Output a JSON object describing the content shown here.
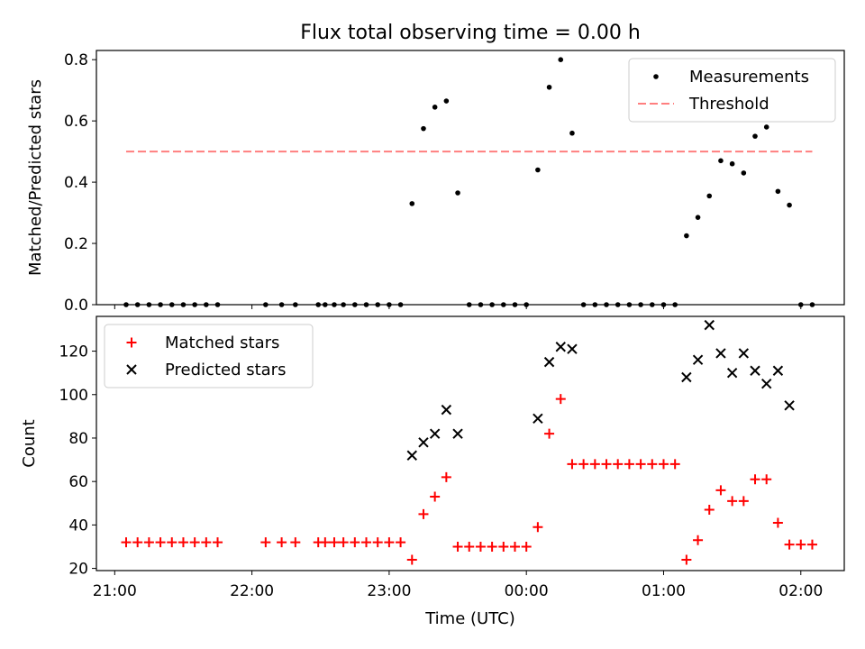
{
  "chart_data": [
    {
      "type": "scatter",
      "title": "Flux total observing time = 0.00 h",
      "ylabel": "Matched/Predicted stars",
      "xlabel": "",
      "xlim": [
        "20:52",
        "02:19"
      ],
      "ylim": [
        0,
        0.83
      ],
      "yticks": [
        0.0,
        0.2,
        0.4,
        0.6,
        0.8
      ],
      "ytick_labels": [
        "0.0",
        "0.2",
        "0.4",
        "0.6",
        "0.8"
      ],
      "xticks": [
        "21:00",
        "22:00",
        "23:00",
        "00:00",
        "01:00",
        "02:00"
      ],
      "legend_position": "top-right",
      "series": [
        {
          "name": "Measurements",
          "color": "#000000",
          "marker": "dot",
          "points": [
            [
              "21:05",
              0
            ],
            [
              "21:10",
              0
            ],
            [
              "21:15",
              0
            ],
            [
              "21:20",
              0
            ],
            [
              "21:25",
              0
            ],
            [
              "21:30",
              0
            ],
            [
              "21:35",
              0
            ],
            [
              "21:40",
              0
            ],
            [
              "21:45",
              0
            ],
            [
              "22:06",
              0
            ],
            [
              "22:13",
              0
            ],
            [
              "22:19",
              0
            ],
            [
              "22:29",
              0
            ],
            [
              "22:32",
              0
            ],
            [
              "22:36",
              0
            ],
            [
              "22:40",
              0
            ],
            [
              "22:45",
              0
            ],
            [
              "22:50",
              0
            ],
            [
              "22:55",
              0
            ],
            [
              "23:00",
              0
            ],
            [
              "23:05",
              0
            ],
            [
              "23:10",
              0.33
            ],
            [
              "23:15",
              0.575
            ],
            [
              "23:20",
              0.645
            ],
            [
              "23:25",
              0.665
            ],
            [
              "23:30",
              0.365
            ],
            [
              "23:35",
              0
            ],
            [
              "23:40",
              0
            ],
            [
              "23:45",
              0
            ],
            [
              "23:50",
              0
            ],
            [
              "23:55",
              0
            ],
            [
              "00:00",
              0
            ],
            [
              "00:05",
              0.44
            ],
            [
              "00:10",
              0.71
            ],
            [
              "00:15",
              0.8
            ],
            [
              "00:20",
              0.56
            ],
            [
              "00:25",
              0
            ],
            [
              "00:30",
              0
            ],
            [
              "00:35",
              0
            ],
            [
              "00:40",
              0
            ],
            [
              "00:45",
              0
            ],
            [
              "00:50",
              0
            ],
            [
              "00:55",
              0
            ],
            [
              "01:00",
              0
            ],
            [
              "01:05",
              0
            ],
            [
              "01:10",
              0.225
            ],
            [
              "01:15",
              0.285
            ],
            [
              "01:20",
              0.355
            ],
            [
              "01:25",
              0.47
            ],
            [
              "01:30",
              0.46
            ],
            [
              "01:35",
              0.43
            ],
            [
              "01:40",
              0.55
            ],
            [
              "01:45",
              0.58
            ],
            [
              "01:50",
              0.37
            ],
            [
              "01:55",
              0.325
            ],
            [
              "02:00",
              0
            ],
            [
              "02:05",
              0
            ]
          ]
        },
        {
          "name": "Threshold",
          "color": "#ff7f7f",
          "style": "dashed",
          "x": [
            "21:05",
            "02:05"
          ],
          "y": [
            0.5,
            0.5
          ]
        }
      ]
    },
    {
      "type": "scatter",
      "title": "",
      "ylabel": "Count",
      "xlabel": "Time (UTC)",
      "xlim": [
        "20:52",
        "02:19"
      ],
      "ylim": [
        19,
        136
      ],
      "yticks": [
        20,
        40,
        60,
        80,
        100,
        120
      ],
      "ytick_labels": [
        "20",
        "40",
        "60",
        "80",
        "100",
        "120"
      ],
      "xticks": [
        "21:00",
        "22:00",
        "23:00",
        "00:00",
        "01:00",
        "02:00"
      ],
      "legend_position": "top-left",
      "series": [
        {
          "name": "Matched stars",
          "color": "#ff0000",
          "marker": "plus",
          "points": [
            [
              "21:05",
              32
            ],
            [
              "21:10",
              32
            ],
            [
              "21:15",
              32
            ],
            [
              "21:20",
              32
            ],
            [
              "21:25",
              32
            ],
            [
              "21:30",
              32
            ],
            [
              "21:35",
              32
            ],
            [
              "21:40",
              32
            ],
            [
              "21:45",
              32
            ],
            [
              "22:06",
              32
            ],
            [
              "22:13",
              32
            ],
            [
              "22:19",
              32
            ],
            [
              "22:29",
              32
            ],
            [
              "22:32",
              32
            ],
            [
              "22:36",
              32
            ],
            [
              "22:40",
              32
            ],
            [
              "22:45",
              32
            ],
            [
              "22:50",
              32
            ],
            [
              "22:55",
              32
            ],
            [
              "23:00",
              32
            ],
            [
              "23:05",
              32
            ],
            [
              "23:10",
              24
            ],
            [
              "23:15",
              45
            ],
            [
              "23:20",
              53
            ],
            [
              "23:25",
              62
            ],
            [
              "23:30",
              30
            ],
            [
              "23:35",
              30
            ],
            [
              "23:40",
              30
            ],
            [
              "23:45",
              30
            ],
            [
              "23:50",
              30
            ],
            [
              "23:55",
              30
            ],
            [
              "00:00",
              30
            ],
            [
              "00:05",
              39
            ],
            [
              "00:10",
              82
            ],
            [
              "00:15",
              98
            ],
            [
              "00:20",
              68
            ],
            [
              "00:25",
              68
            ],
            [
              "00:30",
              68
            ],
            [
              "00:35",
              68
            ],
            [
              "00:40",
              68
            ],
            [
              "00:45",
              68
            ],
            [
              "00:50",
              68
            ],
            [
              "00:55",
              68
            ],
            [
              "01:00",
              68
            ],
            [
              "01:05",
              68
            ],
            [
              "01:10",
              24
            ],
            [
              "01:15",
              33
            ],
            [
              "01:20",
              47
            ],
            [
              "01:25",
              56
            ],
            [
              "01:30",
              51
            ],
            [
              "01:35",
              51
            ],
            [
              "01:40",
              61
            ],
            [
              "01:45",
              61
            ],
            [
              "01:50",
              41
            ],
            [
              "01:55",
              31
            ],
            [
              "02:00",
              31
            ],
            [
              "02:05",
              31
            ]
          ]
        },
        {
          "name": "Predicted stars",
          "color": "#000000",
          "marker": "x",
          "points": [
            [
              "23:10",
              72
            ],
            [
              "23:15",
              78
            ],
            [
              "23:20",
              82
            ],
            [
              "23:25",
              93
            ],
            [
              "23:30",
              82
            ],
            [
              "00:05",
              89
            ],
            [
              "00:10",
              115
            ],
            [
              "00:15",
              122
            ],
            [
              "00:20",
              121
            ],
            [
              "01:10",
              108
            ],
            [
              "01:15",
              116
            ],
            [
              "01:20",
              132
            ],
            [
              "01:25",
              119
            ],
            [
              "01:30",
              110
            ],
            [
              "01:35",
              119
            ],
            [
              "01:40",
              111
            ],
            [
              "01:45",
              105
            ],
            [
              "01:50",
              111
            ],
            [
              "01:55",
              95
            ]
          ]
        }
      ]
    }
  ]
}
